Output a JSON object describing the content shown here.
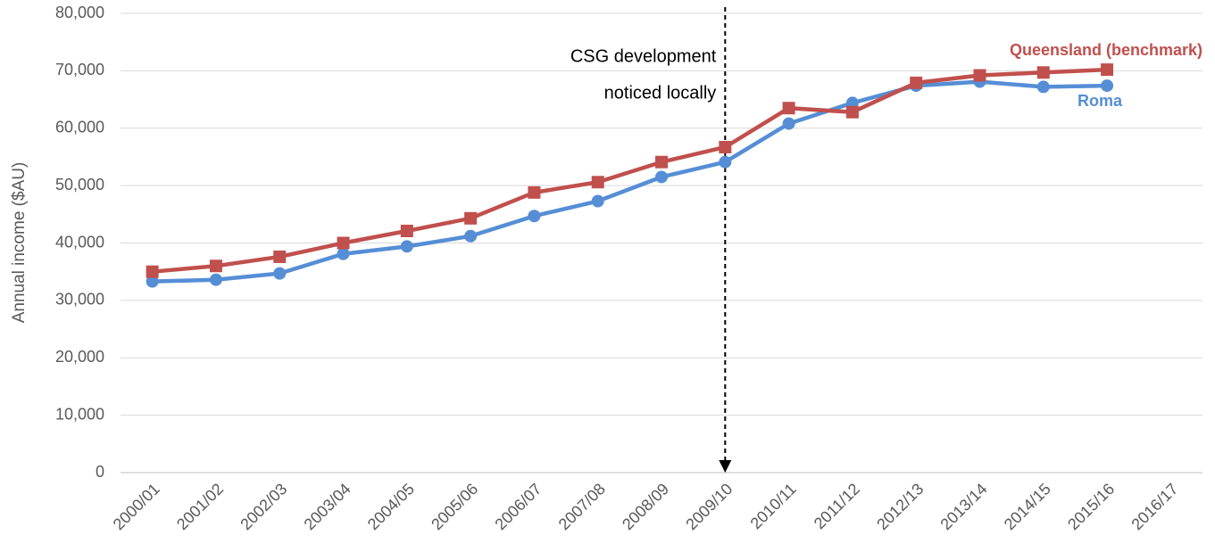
{
  "chart_data": {
    "type": "line",
    "y_label": "Annual income ($AU)",
    "categories": [
      "2000/01",
      "2001/02",
      "2002/03",
      "2003/04",
      "2004/05",
      "2005/06",
      "2006/07",
      "2007/08",
      "2008/09",
      "2009/10",
      "2010/11",
      "2011/12",
      "2012/13",
      "2013/14",
      "2014/15",
      "2015/16",
      "2016/17"
    ],
    "series": [
      {
        "name": "Roma",
        "color": "#558ed5",
        "marker": "circle",
        "values": [
          33300,
          33600,
          34700,
          38100,
          39400,
          41200,
          44700,
          47300,
          51500,
          54100,
          60800,
          64400,
          67400,
          68100,
          67200,
          67400,
          null
        ]
      },
      {
        "name": "Queensland (benchmark)",
        "color": "#c0504d",
        "marker": "square",
        "values": [
          35000,
          36000,
          37600,
          40000,
          42100,
          44300,
          48800,
          50600,
          54100,
          56700,
          63500,
          62800,
          67900,
          69200,
          69700,
          70200,
          null
        ]
      }
    ],
    "ylim": [
      0,
      80000
    ],
    "yticks": [
      0,
      {
        "value": 10000,
        "label": "10,000"
      },
      {
        "value": 20000,
        "label": "20,000"
      },
      {
        "value": 30000,
        "label": "30,000"
      },
      {
        "value": 40000,
        "label": "40,000"
      },
      {
        "value": 50000,
        "label": "50,000"
      },
      {
        "value": 60000,
        "label": "60,000"
      },
      {
        "value": 70000,
        "label": "70,000"
      },
      {
        "value": 80000,
        "label": "80,000"
      }
    ],
    "grid": true,
    "annotation": {
      "lines": [
        "CSG development",
        "noticed locally"
      ],
      "x": "2009/10"
    }
  }
}
